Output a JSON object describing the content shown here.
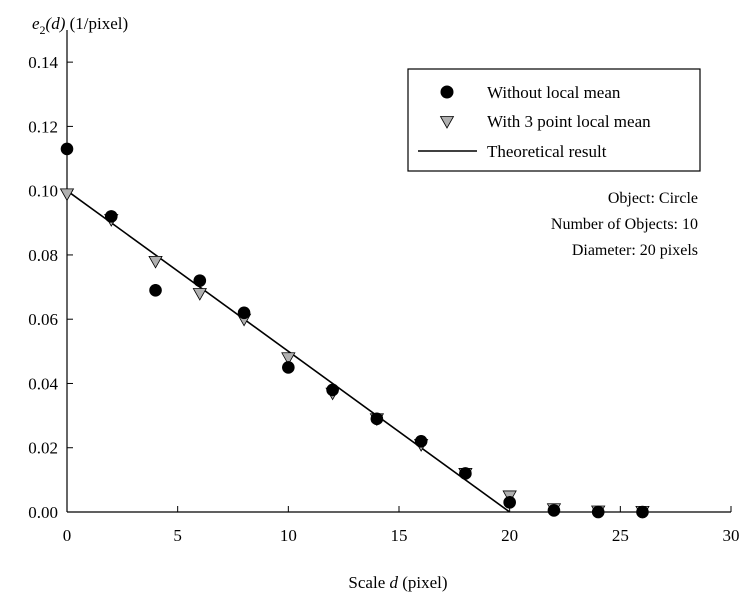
{
  "chart_data": {
    "type": "scatter",
    "title": "",
    "ylabel": {
      "main": "e",
      "subscript": "2",
      "arg": "(d)",
      "unit": " (1/pixel)"
    },
    "xlabel": {
      "prefix": "Scale ",
      "var": "d",
      "suffix": " (pixel)"
    },
    "xlim": [
      0,
      30
    ],
    "ylim": [
      0,
      0.15
    ],
    "x_ticks": [
      "0",
      "5",
      "10",
      "15",
      "20",
      "25",
      "30"
    ],
    "y_ticks": [
      "0.00",
      "0.02",
      "0.04",
      "0.06",
      "0.08",
      "0.10",
      "0.12",
      "0.14"
    ],
    "x_tick_values": [
      0,
      5,
      10,
      15,
      20,
      25,
      30
    ],
    "y_tick_values": [
      0,
      0.02,
      0.04,
      0.06,
      0.08,
      0.1,
      0.12,
      0.14
    ],
    "grid": false,
    "legend_position": "top-right",
    "series": [
      {
        "name": "Without local mean",
        "marker": "circle",
        "color": "#000000",
        "x": [
          0,
          2,
          4,
          6,
          8,
          10,
          12,
          14,
          16,
          18,
          20,
          22,
          24,
          26
        ],
        "y": [
          0.113,
          0.092,
          0.069,
          0.072,
          0.062,
          0.045,
          0.038,
          0.029,
          0.022,
          0.012,
          0.003,
          0.0005,
          0.0,
          0.0
        ]
      },
      {
        "name": "With 3 point local mean",
        "marker": "triangle-down",
        "color": "#b0b0b0",
        "x": [
          0,
          2,
          4,
          6,
          8,
          10,
          12,
          14,
          16,
          18,
          20,
          22,
          24,
          26
        ],
        "y": [
          0.099,
          0.091,
          0.078,
          0.068,
          0.06,
          0.048,
          0.037,
          0.029,
          0.021,
          0.012,
          0.005,
          0.001,
          0.0003,
          0.0002
        ]
      },
      {
        "name": "Theoretical result",
        "marker": "line",
        "color": "#000000",
        "x": [
          0,
          20
        ],
        "y": [
          0.1,
          0.0
        ]
      }
    ],
    "annotations": [
      "Object: Circle",
      "Number of Objects: 10",
      "Diameter: 20 pixels"
    ]
  }
}
